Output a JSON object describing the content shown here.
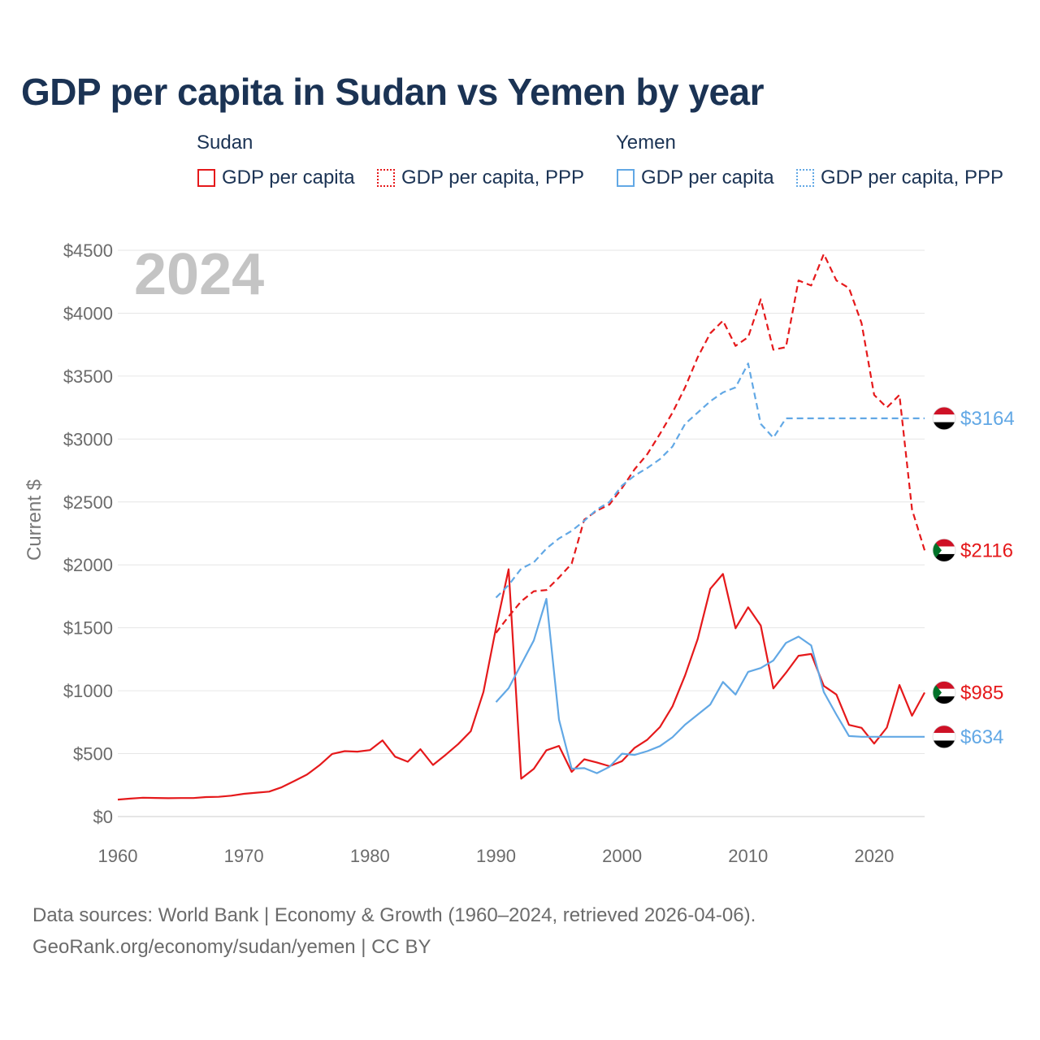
{
  "colors": {
    "sudan": "#e5191b",
    "yemen": "#62a8e5"
  },
  "legend": {
    "groups": [
      {
        "country": "Sudan",
        "items": [
          {
            "label": "GDP per capita",
            "style": "solid"
          },
          {
            "label": "GDP per capita, PPP",
            "style": "dotted"
          }
        ]
      },
      {
        "country": "Yemen",
        "items": [
          {
            "label": "GDP per capita",
            "style": "solid"
          },
          {
            "label": "GDP per capita, PPP",
            "style": "dotted"
          }
        ]
      }
    ]
  },
  "source": {
    "line1": "Data sources: World Bank | Economy & Growth (1960–2024, retrieved 2026-04-06).",
    "line2": "GeoRank.org/economy/sudan/yemen | CC BY"
  },
  "chart_data": {
    "type": "line",
    "title": "GDP per capita in Sudan vs Yemen by year",
    "year_overlay": "2024",
    "xlabel": "",
    "ylabel": "Current $",
    "xlim": [
      1960,
      2024
    ],
    "ylim": [
      0,
      4500
    ],
    "x_ticks": [
      1960,
      1970,
      1980,
      1990,
      2000,
      2010,
      2020
    ],
    "y_ticks": [
      0,
      500,
      1000,
      1500,
      2000,
      2500,
      3000,
      3500,
      4000,
      4500
    ],
    "y_tick_labels": [
      "$0",
      "$500",
      "$1000",
      "$1500",
      "$2000",
      "$2500",
      "$3000",
      "$3500",
      "$4000",
      "$4500"
    ],
    "grid": true,
    "series": [
      {
        "name": "Sudan GDP per capita",
        "country": "Sudan",
        "metric": "GDP per capita",
        "dash": "solid",
        "color_key": "sudan",
        "end_label": "$985",
        "end_value": 985,
        "flag": "sudan",
        "points": [
          [
            1960,
            135
          ],
          [
            1961,
            143
          ],
          [
            1962,
            150
          ],
          [
            1963,
            148
          ],
          [
            1964,
            146
          ],
          [
            1965,
            147
          ],
          [
            1966,
            147
          ],
          [
            1967,
            155
          ],
          [
            1968,
            157
          ],
          [
            1969,
            166
          ],
          [
            1970,
            181
          ],
          [
            1971,
            190
          ],
          [
            1972,
            198
          ],
          [
            1973,
            233
          ],
          [
            1974,
            282
          ],
          [
            1975,
            333
          ],
          [
            1976,
            408
          ],
          [
            1977,
            498
          ],
          [
            1978,
            520
          ],
          [
            1979,
            516
          ],
          [
            1980,
            528
          ],
          [
            1981,
            605
          ],
          [
            1982,
            476
          ],
          [
            1983,
            436
          ],
          [
            1984,
            535
          ],
          [
            1985,
            410
          ],
          [
            1986,
            490
          ],
          [
            1987,
            576
          ],
          [
            1988,
            678
          ],
          [
            1989,
            990
          ],
          [
            1990,
            1500
          ],
          [
            1991,
            1965
          ],
          [
            1992,
            301
          ],
          [
            1993,
            379
          ],
          [
            1994,
            527
          ],
          [
            1995,
            561
          ],
          [
            1996,
            355
          ],
          [
            1997,
            455
          ],
          [
            1998,
            430
          ],
          [
            1999,
            400
          ],
          [
            2000,
            440
          ],
          [
            2001,
            546
          ],
          [
            2002,
            611
          ],
          [
            2003,
            711
          ],
          [
            2004,
            876
          ],
          [
            2005,
            1122
          ],
          [
            2006,
            1411
          ],
          [
            2007,
            1810
          ],
          [
            2008,
            1928
          ],
          [
            2009,
            1496
          ],
          [
            2010,
            1663
          ],
          [
            2011,
            1518
          ],
          [
            2012,
            1018
          ],
          [
            2013,
            1142
          ],
          [
            2014,
            1278
          ],
          [
            2015,
            1292
          ],
          [
            2016,
            1038
          ],
          [
            2017,
            970
          ],
          [
            2018,
            728
          ],
          [
            2019,
            705
          ],
          [
            2020,
            580
          ],
          [
            2021,
            707
          ],
          [
            2022,
            1045
          ],
          [
            2023,
            801
          ],
          [
            2024,
            985
          ]
        ]
      },
      {
        "name": "Sudan GDP per capita, PPP",
        "country": "Sudan",
        "metric": "GDP per capita, PPP",
        "dash": "dashed",
        "color_key": "sudan",
        "end_label": "$2116",
        "end_value": 2116,
        "flag": "sudan",
        "points": [
          [
            1990,
            1460
          ],
          [
            1991,
            1590
          ],
          [
            1992,
            1710
          ],
          [
            1993,
            1790
          ],
          [
            1994,
            1800
          ],
          [
            1995,
            1900
          ],
          [
            1996,
            2010
          ],
          [
            1997,
            2360
          ],
          [
            1998,
            2430
          ],
          [
            1999,
            2480
          ],
          [
            2000,
            2610
          ],
          [
            2001,
            2760
          ],
          [
            2002,
            2880
          ],
          [
            2003,
            3040
          ],
          [
            2004,
            3210
          ],
          [
            2005,
            3410
          ],
          [
            2006,
            3650
          ],
          [
            2007,
            3840
          ],
          [
            2008,
            3940
          ],
          [
            2009,
            3740
          ],
          [
            2010,
            3810
          ],
          [
            2011,
            4110
          ],
          [
            2012,
            3710
          ],
          [
            2013,
            3730
          ],
          [
            2014,
            4260
          ],
          [
            2015,
            4220
          ],
          [
            2016,
            4470
          ],
          [
            2017,
            4260
          ],
          [
            2018,
            4200
          ],
          [
            2019,
            3920
          ],
          [
            2020,
            3350
          ],
          [
            2021,
            3250
          ],
          [
            2022,
            3350
          ],
          [
            2023,
            2440
          ],
          [
            2024,
            2116
          ]
        ]
      },
      {
        "name": "Yemen GDP per capita",
        "country": "Yemen",
        "metric": "GDP per capita",
        "dash": "solid",
        "color_key": "yemen",
        "end_label": "$634",
        "end_value": 634,
        "flag": "yemen",
        "points": [
          [
            1990,
            910
          ],
          [
            1991,
            1020
          ],
          [
            1992,
            1210
          ],
          [
            1993,
            1400
          ],
          [
            1994,
            1730
          ],
          [
            1995,
            770
          ],
          [
            1996,
            380
          ],
          [
            1997,
            385
          ],
          [
            1998,
            345
          ],
          [
            1999,
            395
          ],
          [
            2000,
            500
          ],
          [
            2001,
            490
          ],
          [
            2002,
            520
          ],
          [
            2003,
            560
          ],
          [
            2004,
            630
          ],
          [
            2005,
            730
          ],
          [
            2006,
            810
          ],
          [
            2007,
            890
          ],
          [
            2008,
            1070
          ],
          [
            2009,
            970
          ],
          [
            2010,
            1150
          ],
          [
            2011,
            1180
          ],
          [
            2012,
            1240
          ],
          [
            2013,
            1380
          ],
          [
            2014,
            1430
          ],
          [
            2015,
            1360
          ],
          [
            2016,
            990
          ],
          [
            2017,
            810
          ],
          [
            2018,
            640
          ],
          [
            2019,
            634
          ],
          [
            2020,
            634
          ],
          [
            2021,
            634
          ],
          [
            2022,
            634
          ],
          [
            2023,
            634
          ],
          [
            2024,
            634
          ]
        ]
      },
      {
        "name": "Yemen GDP per capita, PPP",
        "country": "Yemen",
        "metric": "GDP per capita, PPP",
        "dash": "dashed",
        "color_key": "yemen",
        "end_label": "$3164",
        "end_value": 3164,
        "flag": "yemen",
        "points": [
          [
            1990,
            1740
          ],
          [
            1991,
            1840
          ],
          [
            1992,
            1970
          ],
          [
            1993,
            2020
          ],
          [
            1994,
            2130
          ],
          [
            1995,
            2210
          ],
          [
            1996,
            2270
          ],
          [
            1997,
            2350
          ],
          [
            1998,
            2440
          ],
          [
            1999,
            2500
          ],
          [
            2000,
            2630
          ],
          [
            2001,
            2710
          ],
          [
            2002,
            2770
          ],
          [
            2003,
            2840
          ],
          [
            2004,
            2940
          ],
          [
            2005,
            3120
          ],
          [
            2006,
            3210
          ],
          [
            2007,
            3300
          ],
          [
            2008,
            3370
          ],
          [
            2009,
            3410
          ],
          [
            2010,
            3600
          ],
          [
            2011,
            3120
          ],
          [
            2012,
            3010
          ],
          [
            2013,
            3164
          ],
          [
            2014,
            3164
          ],
          [
            2015,
            3164
          ],
          [
            2016,
            3164
          ],
          [
            2017,
            3164
          ],
          [
            2018,
            3164
          ],
          [
            2019,
            3164
          ],
          [
            2020,
            3164
          ],
          [
            2021,
            3164
          ],
          [
            2022,
            3164
          ],
          [
            2023,
            3164
          ],
          [
            2024,
            3164
          ]
        ]
      }
    ]
  }
}
